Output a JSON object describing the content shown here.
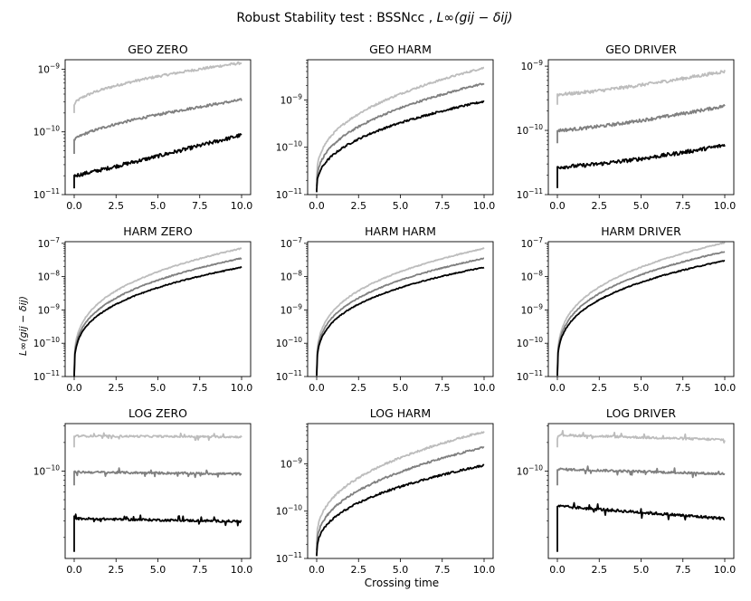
{
  "figure": {
    "title_prefix": "Robust Stability test : BSSNcc , ",
    "title_math": "L∞(gij − δij)",
    "ylabel": "L∞(gij − δij)",
    "xlabel": "Crossing time"
  },
  "colors": {
    "light": "#bdbdbd",
    "mid": "#808080",
    "dark": "#000000"
  },
  "chart_data": [
    {
      "type": "line",
      "title": "GEO ZERO",
      "xlim": [
        0,
        10
      ],
      "ylim_log10": [
        -11,
        -8.85
      ],
      "xticks": [
        "0.0",
        "2.5",
        "5.0",
        "7.5",
        "10.0"
      ],
      "yticks": [
        {
          "exp": -11,
          "label": "10-11"
        },
        {
          "exp": -10,
          "label": "10-10"
        },
        {
          "exp": -9,
          "label": "10-9"
        }
      ],
      "series": [
        {
          "name": "light",
          "shape": "power",
          "start": -9.58,
          "end": -8.9,
          "alpha": 0.55,
          "noise": 0.02,
          "drop": -9.7
        },
        {
          "name": "mid",
          "shape": "power",
          "start": -10.14,
          "end": -9.49,
          "alpha": 0.65,
          "noise": 0.02,
          "drop": -10.35
        },
        {
          "name": "dark",
          "shape": "power",
          "start": -10.7,
          "end": -10.05,
          "alpha": 1.05,
          "noise": 0.03,
          "drop": -10.9
        }
      ]
    },
    {
      "type": "line",
      "title": "GEO HARM",
      "xlim": [
        0,
        10
      ],
      "ylim_log10": [
        -11,
        -8.15
      ],
      "xticks": [
        "0.0",
        "2.5",
        "5.0",
        "7.5",
        "10.0"
      ],
      "yticks": [
        {
          "exp": -11,
          "label": "10-11"
        },
        {
          "exp": -10,
          "label": "10-10"
        },
        {
          "exp": -9,
          "label": "10-9"
        }
      ],
      "series": [
        {
          "name": "light",
          "shape": "growth",
          "start": -10.7,
          "end": -8.32,
          "alpha": 0.38,
          "noise": 0.02,
          "drop": -10.7
        },
        {
          "name": "mid",
          "shape": "growth",
          "start": -10.8,
          "end": -8.65,
          "alpha": 0.4,
          "noise": 0.02,
          "drop": -10.8
        },
        {
          "name": "dark",
          "shape": "growth",
          "start": -10.9,
          "end": -9.03,
          "alpha": 0.4,
          "noise": 0.02,
          "drop": -10.95
        }
      ]
    },
    {
      "type": "line",
      "title": "GEO DRIVER",
      "xlim": [
        0,
        10
      ],
      "ylim_log10": [
        -11,
        -8.9
      ],
      "xticks": [
        "0.0",
        "2.5",
        "5.0",
        "7.5",
        "10.0"
      ],
      "yticks": [
        {
          "exp": -11,
          "label": "10-11"
        },
        {
          "exp": -10,
          "label": "10-10"
        },
        {
          "exp": -9,
          "label": "10-9"
        }
      ],
      "series": [
        {
          "name": "light",
          "shape": "power",
          "start": -9.44,
          "end": -9.08,
          "alpha": 1.3,
          "noise": 0.025,
          "drop": -9.6
        },
        {
          "name": "mid",
          "shape": "power",
          "start": -10.0,
          "end": -9.62,
          "alpha": 1.3,
          "noise": 0.025,
          "drop": -10.2
        },
        {
          "name": "dark",
          "shape": "power",
          "start": -10.57,
          "end": -10.23,
          "alpha": 1.4,
          "noise": 0.03,
          "drop": -10.9
        }
      ]
    },
    {
      "type": "line",
      "title": "HARM ZERO",
      "xlim": [
        0,
        10
      ],
      "ylim_log10": [
        -11,
        -6.95
      ],
      "xticks": [
        "0.0",
        "2.5",
        "5.0",
        "7.5",
        "10.0"
      ],
      "yticks": [
        {
          "exp": -11,
          "label": "10-11"
        },
        {
          "exp": -10,
          "label": "10-10"
        },
        {
          "exp": -9,
          "label": "10-9"
        },
        {
          "exp": -8,
          "label": "10-8"
        },
        {
          "exp": -7,
          "label": "10-7"
        }
      ],
      "series": [
        {
          "name": "light",
          "shape": "growth",
          "start": -10.9,
          "end": -7.15,
          "alpha": 0.3,
          "noise": 0.015,
          "drop": -10.9
        },
        {
          "name": "mid",
          "shape": "growth",
          "start": -10.95,
          "end": -7.45,
          "alpha": 0.3,
          "noise": 0.015,
          "drop": -10.95
        },
        {
          "name": "dark",
          "shape": "growth",
          "start": -10.98,
          "end": -7.72,
          "alpha": 0.3,
          "noise": 0.015,
          "drop": -10.98
        }
      ]
    },
    {
      "type": "line",
      "title": "HARM HARM",
      "xlim": [
        0,
        10
      ],
      "ylim_log10": [
        -11,
        -6.95
      ],
      "xticks": [
        "0.0",
        "2.5",
        "5.0",
        "7.5",
        "10.0"
      ],
      "yticks": [
        {
          "exp": -11,
          "label": "10-11"
        },
        {
          "exp": -10,
          "label": "10-10"
        },
        {
          "exp": -9,
          "label": "10-9"
        },
        {
          "exp": -8,
          "label": "10-8"
        },
        {
          "exp": -7,
          "label": "10-7"
        }
      ],
      "series": [
        {
          "name": "light",
          "shape": "growth",
          "start": -10.9,
          "end": -7.15,
          "alpha": 0.3,
          "noise": 0.015,
          "drop": -10.9
        },
        {
          "name": "mid",
          "shape": "growth",
          "start": -10.95,
          "end": -7.45,
          "alpha": 0.3,
          "noise": 0.015,
          "drop": -10.95
        },
        {
          "name": "dark",
          "shape": "growth",
          "start": -10.98,
          "end": -7.72,
          "alpha": 0.3,
          "noise": 0.015,
          "drop": -10.98
        }
      ]
    },
    {
      "type": "line",
      "title": "HARM DRIVER",
      "xlim": [
        0,
        10
      ],
      "ylim_log10": [
        -11,
        -6.95
      ],
      "xticks": [
        "0.0",
        "2.5",
        "5.0",
        "7.5",
        "10.0"
      ],
      "yticks": [
        {
          "exp": -11,
          "label": "10-11"
        },
        {
          "exp": -10,
          "label": "10-10"
        },
        {
          "exp": -9,
          "label": "10-9"
        },
        {
          "exp": -8,
          "label": "10-8"
        },
        {
          "exp": -7,
          "label": "10-7"
        }
      ],
      "series": [
        {
          "name": "light",
          "shape": "growth",
          "start": -10.9,
          "end": -6.98,
          "alpha": 0.3,
          "noise": 0.015,
          "drop": -10.9
        },
        {
          "name": "mid",
          "shape": "growth",
          "start": -10.95,
          "end": -7.25,
          "alpha": 0.3,
          "noise": 0.015,
          "drop": -10.95
        },
        {
          "name": "dark",
          "shape": "growth",
          "start": -10.98,
          "end": -7.52,
          "alpha": 0.3,
          "noise": 0.015,
          "drop": -10.98
        }
      ]
    },
    {
      "type": "line",
      "title": "LOG ZERO",
      "xlim": [
        0,
        10
      ],
      "ylim_log10": [
        -10.92,
        -9.5
      ],
      "xticks": [
        "0.0",
        "2.5",
        "5.0",
        "7.5",
        "10.0"
      ],
      "yticks": [
        {
          "exp": -10,
          "label": "10-10"
        }
      ],
      "series": [
        {
          "name": "light",
          "shape": "flat",
          "start": -9.63,
          "end": -9.64,
          "alpha": 1,
          "noise": 0.01,
          "drop": -9.75
        },
        {
          "name": "mid",
          "shape": "flat",
          "start": -10.01,
          "end": -10.03,
          "alpha": 1,
          "noise": 0.012,
          "drop": -10.15
        },
        {
          "name": "dark",
          "shape": "flat",
          "start": -10.5,
          "end": -10.53,
          "alpha": 1,
          "noise": 0.012,
          "drop": -10.85
        }
      ]
    },
    {
      "type": "line",
      "title": "LOG HARM",
      "xlim": [
        0,
        10
      ],
      "ylim_log10": [
        -11,
        -8.15
      ],
      "xticks": [
        "0.0",
        "2.5",
        "5.0",
        "7.5",
        "10.0"
      ],
      "yticks": [
        {
          "exp": -11,
          "label": "10-11"
        },
        {
          "exp": -10,
          "label": "10-10"
        },
        {
          "exp": -9,
          "label": "10-9"
        }
      ],
      "series": [
        {
          "name": "light",
          "shape": "growth",
          "start": -10.7,
          "end": -8.32,
          "alpha": 0.38,
          "noise": 0.02,
          "drop": -10.7
        },
        {
          "name": "mid",
          "shape": "growth",
          "start": -10.8,
          "end": -8.65,
          "alpha": 0.4,
          "noise": 0.02,
          "drop": -10.8
        },
        {
          "name": "dark",
          "shape": "growth",
          "start": -10.9,
          "end": -9.03,
          "alpha": 0.4,
          "noise": 0.02,
          "drop": -10.95
        }
      ]
    },
    {
      "type": "line",
      "title": "LOG DRIVER",
      "xlim": [
        0,
        10
      ],
      "ylim_log10": [
        -10.92,
        -9.5
      ],
      "xticks": [
        "0.0",
        "2.5",
        "5.0",
        "7.5",
        "10.0"
      ],
      "yticks": [
        {
          "exp": -10,
          "label": "10-10"
        }
      ],
      "series": [
        {
          "name": "light",
          "shape": "flat",
          "start": -9.62,
          "end": -9.67,
          "alpha": 1,
          "noise": 0.012,
          "drop": -9.75
        },
        {
          "name": "mid",
          "shape": "flat",
          "start": -9.98,
          "end": -10.03,
          "alpha": 1,
          "noise": 0.012,
          "drop": -10.15
        },
        {
          "name": "dark",
          "shape": "flat",
          "start": -10.37,
          "end": -10.5,
          "alpha": 1,
          "noise": 0.015,
          "drop": -10.85
        }
      ]
    }
  ]
}
